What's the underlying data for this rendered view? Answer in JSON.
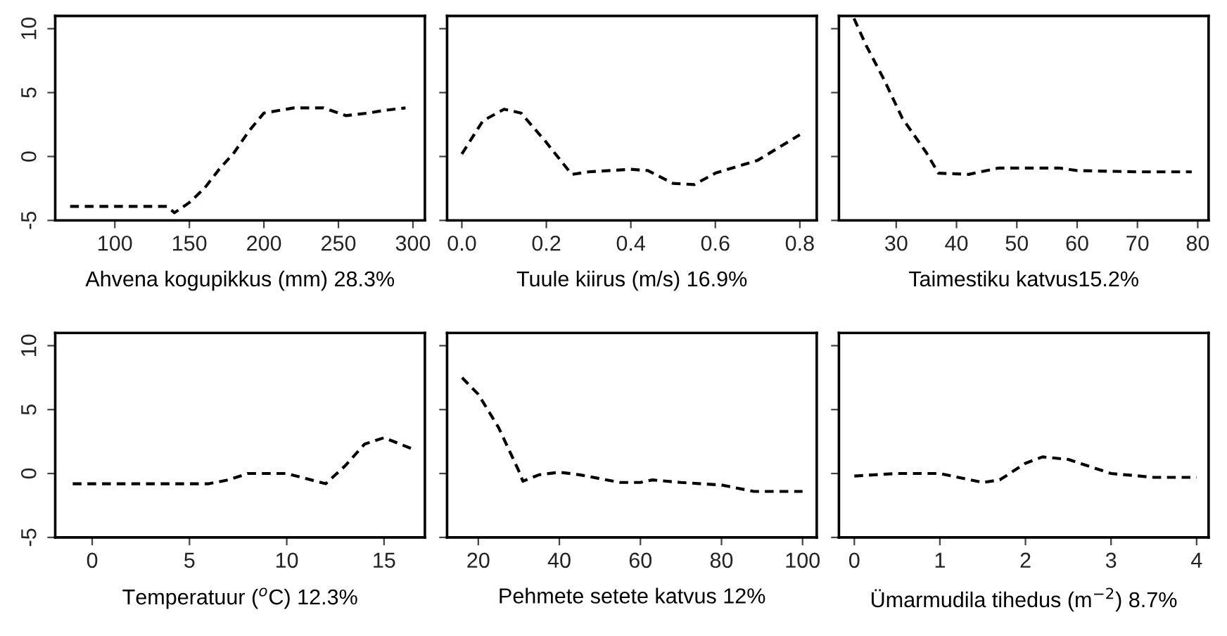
{
  "chart_data": [
    {
      "type": "line",
      "xlabel": "Ahvena kogupikkus (mm) 28.3%",
      "x": [
        70,
        135,
        140,
        150,
        160,
        170,
        180,
        190,
        200,
        210,
        220,
        240,
        255,
        270,
        280,
        295
      ],
      "series": [
        {
          "color": "#000000",
          "values": [
            -3.9,
            -3.9,
            -4.4,
            -3.6,
            -2.5,
            -1,
            0.3,
            2,
            3.4,
            3.6,
            3.8,
            3.8,
            3.2,
            3.4,
            3.6,
            3.8
          ]
        }
      ],
      "line_style": "dashed",
      "xlim": [
        60,
        308
      ],
      "xticks": [
        100,
        150,
        200,
        250,
        300
      ],
      "ylim": [
        -5,
        11
      ],
      "yticks": [
        -5,
        0,
        5,
        10
      ],
      "grid": false,
      "legend": false
    },
    {
      "type": "line",
      "xlabel": "Tuule kiirus (m/s) 16.9%",
      "x": [
        0.0,
        0.05,
        0.1,
        0.14,
        0.2,
        0.26,
        0.3,
        0.4,
        0.44,
        0.5,
        0.55,
        0.6,
        0.7,
        0.8
      ],
      "series": [
        {
          "color": "#000000",
          "values": [
            0.2,
            2.8,
            3.7,
            3.4,
            1.1,
            -1.4,
            -1.2,
            -1.0,
            -1.1,
            -2.1,
            -2.2,
            -1.3,
            -0.3,
            1.7
          ]
        }
      ],
      "line_style": "dashed",
      "xlim": [
        -0.035,
        0.84
      ],
      "xticks": [
        {
          "value": 0,
          "label": "0.0"
        },
        0.2,
        0.4,
        0.6,
        0.8
      ],
      "ylim": [
        -5,
        11
      ],
      "yticks": [
        {
          "value": -5,
          "label": null
        },
        {
          "value": 0,
          "label": null
        },
        {
          "value": 5,
          "label": null
        },
        {
          "value": 10,
          "label": null
        }
      ],
      "tick_labels": "x",
      "grid": false,
      "legend": false
    },
    {
      "type": "line",
      "xlabel": "Taimestiku katvus15.2%",
      "x": [
        23,
        25,
        28,
        31,
        35,
        37,
        42,
        47,
        57,
        60,
        70,
        79
      ],
      "series": [
        {
          "color": "#000000",
          "values": [
            10.8,
            8.7,
            6.0,
            3.0,
            0.3,
            -1.3,
            -1.4,
            -0.9,
            -0.9,
            -1.1,
            -1.2,
            -1.2
          ]
        }
      ],
      "line_style": "dashed",
      "xlim": [
        20.5,
        81.8
      ],
      "xticks": [
        30,
        40,
        50,
        60,
        70,
        80
      ],
      "ylim": [
        -5,
        11
      ],
      "yticks": [
        {
          "value": -5,
          "label": null
        },
        {
          "value": 0,
          "label": null
        },
        {
          "value": 5,
          "label": null
        },
        {
          "value": 10,
          "label": null
        }
      ],
      "tick_labels": "x",
      "grid": false,
      "legend": false
    },
    {
      "type": "line",
      "xlabel": "Temperatuur ($^{o}$C) 12.3%",
      "x": [
        -1,
        6,
        7,
        8,
        10,
        11,
        12,
        13,
        14,
        15,
        16,
        16.5
      ],
      "series": [
        {
          "color": "#000000",
          "values": [
            -0.8,
            -0.8,
            -0.5,
            0,
            0,
            -0.4,
            -0.8,
            0.6,
            2.3,
            2.8,
            2.2,
            1.9
          ]
        }
      ],
      "line_style": "dashed",
      "xlim": [
        -1.9,
        17.1
      ],
      "xticks": [
        0,
        5,
        10,
        15
      ],
      "ylim": [
        -5,
        11
      ],
      "yticks": [
        -5,
        0,
        5,
        10
      ],
      "grid": false,
      "legend": false
    },
    {
      "type": "line",
      "xlabel": "Pehmete setete katvus 12%",
      "x": [
        16,
        20,
        25,
        30,
        31,
        35,
        40,
        45,
        50,
        55,
        60,
        63,
        70,
        80,
        88,
        100
      ],
      "series": [
        {
          "color": "#000000",
          "values": [
            7.5,
            6.2,
            3.6,
            0.2,
            -0.6,
            -0.1,
            0.1,
            -0.1,
            -0.4,
            -0.7,
            -0.7,
            -0.5,
            -0.7,
            -0.9,
            -1.4,
            -1.4
          ]
        }
      ],
      "line_style": "dashed",
      "xlim": [
        12.3,
        103.5
      ],
      "xticks": [
        20,
        40,
        60,
        80,
        100
      ],
      "ylim": [
        -5,
        11
      ],
      "yticks": [
        {
          "value": -5,
          "label": null
        },
        {
          "value": 0,
          "label": null
        },
        {
          "value": 5,
          "label": null
        },
        {
          "value": 10,
          "label": null
        }
      ],
      "tick_labels": "x",
      "grid": false,
      "legend": false
    },
    {
      "type": "line",
      "xlabel": "Ümarmudila tihedus (m$^{−2}$) 8.7%",
      "x": [
        0,
        0.5,
        1,
        1.5,
        1.7,
        2.0,
        2.2,
        2.5,
        3.0,
        3.5,
        4
      ],
      "series": [
        {
          "color": "#000000",
          "values": [
            -0.2,
            0,
            0,
            -0.7,
            -0.5,
            0.8,
            1.3,
            1.1,
            0,
            -0.3,
            -0.3
          ]
        }
      ],
      "line_style": "dashed",
      "xlim": [
        -0.18,
        4.14
      ],
      "xticks": [
        0,
        1,
        2,
        3,
        4
      ],
      "ylim": [
        -5,
        11
      ],
      "yticks": [
        {
          "value": -5,
          "label": null
        },
        {
          "value": 0,
          "label": null
        },
        {
          "value": 5,
          "label": null
        },
        {
          "value": 10,
          "label": null
        }
      ],
      "tick_labels": "x",
      "grid": false,
      "legend": false
    }
  ]
}
